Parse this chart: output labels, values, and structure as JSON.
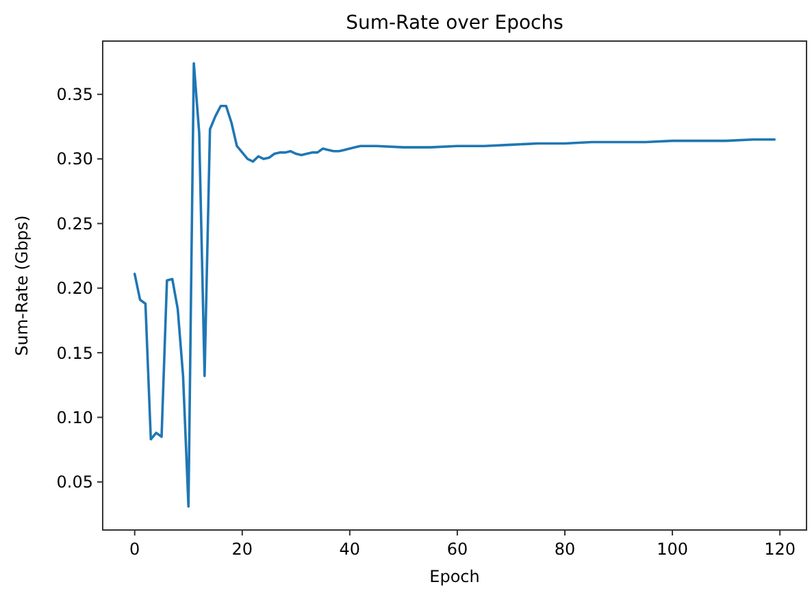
{
  "chart_data": {
    "type": "line",
    "title": "Sum-Rate over Epochs",
    "xlabel": "Epoch",
    "ylabel": "Sum-Rate (Gbps)",
    "x": [
      0,
      1,
      2,
      3,
      4,
      5,
      6,
      7,
      8,
      9,
      10,
      11,
      12,
      13,
      14,
      15,
      16,
      17,
      18,
      19,
      20,
      21,
      22,
      23,
      24,
      25,
      26,
      27,
      28,
      29,
      30,
      31,
      32,
      33,
      34,
      35,
      36,
      37,
      38,
      39,
      40,
      41,
      42,
      45,
      50,
      55,
      60,
      65,
      70,
      75,
      80,
      85,
      90,
      95,
      100,
      105,
      110,
      115,
      119
    ],
    "series": [
      {
        "color": "#1f77b4",
        "values": [
          0.211,
          0.191,
          0.188,
          0.083,
          0.088,
          0.085,
          0.206,
          0.207,
          0.184,
          0.132,
          0.031,
          0.374,
          0.32,
          0.132,
          0.323,
          0.333,
          0.341,
          0.341,
          0.328,
          0.31,
          0.305,
          0.3,
          0.298,
          0.302,
          0.3,
          0.301,
          0.304,
          0.305,
          0.305,
          0.306,
          0.304,
          0.303,
          0.304,
          0.305,
          0.305,
          0.308,
          0.307,
          0.306,
          0.306,
          0.307,
          0.308,
          0.309,
          0.31,
          0.31,
          0.309,
          0.309,
          0.31,
          0.31,
          0.311,
          0.312,
          0.312,
          0.313,
          0.313,
          0.313,
          0.314,
          0.314,
          0.314,
          0.315,
          0.315
        ]
      }
    ],
    "xlim": [
      -5.95,
      124.95
    ],
    "xticks": [
      0,
      20,
      40,
      60,
      80,
      100,
      120
    ],
    "ylim": [
      0.0128,
      0.3912
    ],
    "yticks": [
      {
        "value": 0.05,
        "label": "0.05"
      },
      {
        "value": 0.1,
        "label": "0.10"
      },
      {
        "value": 0.15,
        "label": "0.15"
      },
      {
        "value": 0.2,
        "label": "0.20"
      },
      {
        "value": 0.25,
        "label": "0.25"
      },
      {
        "value": 0.3,
        "label": "0.30"
      },
      {
        "value": 0.35,
        "label": "0.35"
      }
    ],
    "grid": false,
    "marker": "none",
    "line_style": "solid"
  }
}
